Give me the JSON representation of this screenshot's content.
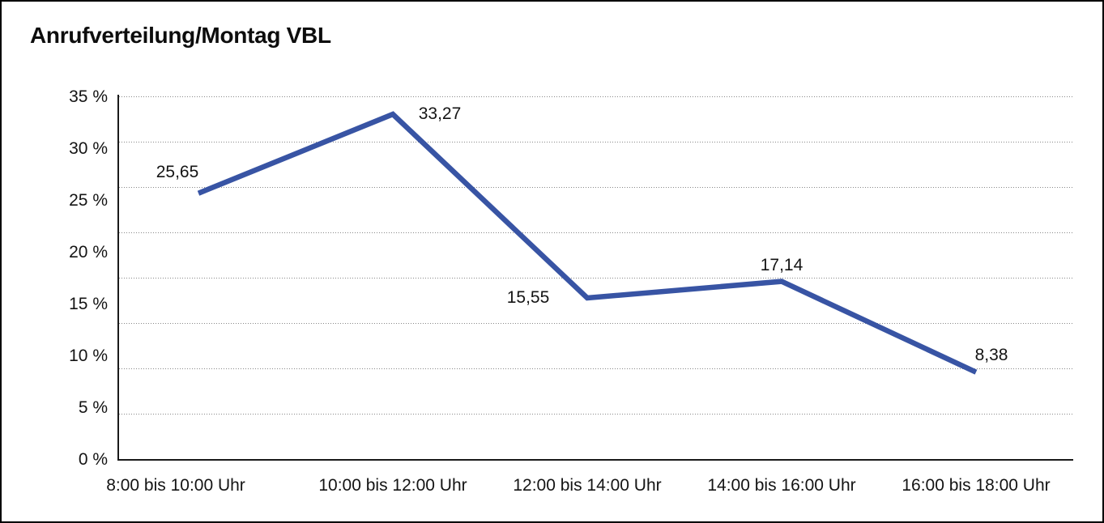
{
  "title": "Anrufverteilung/Montag VBL",
  "chart_data": {
    "type": "line",
    "title": "Anrufverteilung/Montag VBL",
    "categories": [
      "8:00 bis 10:00 Uhr",
      "10:00 bis 12:00 Uhr",
      "12:00 bis 14:00 Uhr",
      "14:00 bis 16:00 Uhr",
      "16:00 bis 18:00 Uhr"
    ],
    "values": [
      25.65,
      33.27,
      15.55,
      17.14,
      8.38
    ],
    "data_labels": [
      "25,65",
      "33,27",
      "15,55",
      "17,14",
      "8,38"
    ],
    "y_tick_labels": [
      "35 %",
      "30 %",
      "25 %",
      "20 %",
      "15 %",
      "10 %",
      "5 %",
      "0 %"
    ],
    "ylim": [
      0,
      35
    ],
    "y_tick_step": 5,
    "xlabel": "",
    "ylabel": "",
    "legend": "none",
    "grid": "horizontal-dotted",
    "line_color": "#3854A4",
    "axis_color": "#1a1a1a",
    "gridline_color": "#878787",
    "text_color": "#141414",
    "background_color": "#ffffff"
  }
}
